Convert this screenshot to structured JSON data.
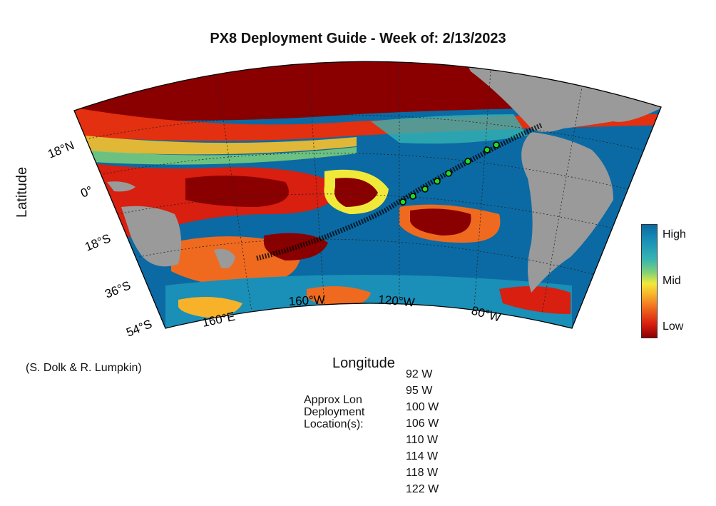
{
  "title": "PX8 Deployment Guide - Week of: 2/13/2023",
  "axes": {
    "ylabel": "Latitude",
    "xlabel": "Longitude",
    "lat_ticks": [
      "18°N",
      "0°",
      "18°S",
      "36°S",
      "54°S"
    ],
    "lon_ticks": [
      "160°E",
      "160°W",
      "120°W",
      "80°W"
    ]
  },
  "credit": "(S. Dolk & R. Lumpkin)",
  "deployment": {
    "label": "Approx Lon Deployment Location(s):",
    "locations": [
      "92 W",
      "95 W",
      "100 W",
      "106 W",
      "110 W",
      "114 W",
      "118 W",
      "122 W"
    ]
  },
  "colorbar": {
    "high": "High",
    "mid": "Mid",
    "low": "Low",
    "colors": [
      "#0b6aa3",
      "#35b3b3",
      "#f1e93a",
      "#ef6a1f",
      "#8a0000"
    ]
  },
  "colors": {
    "ocean_high": "#0b6aa3",
    "land": "#9a9a9a",
    "track_marker": "#22dd22"
  }
}
